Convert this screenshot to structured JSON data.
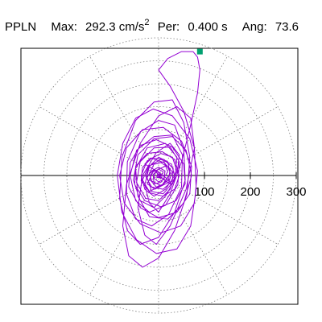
{
  "header": {
    "station": "PPLN",
    "max_label": "Max:",
    "max_value": "292.3 cm/s",
    "max_exp": "2",
    "per_label": "Per:",
    "per_value": "0.400 s",
    "ang_label": "Ang:",
    "ang_value": "73.6"
  },
  "chart_data": {
    "type": "polar particle-motion (line)",
    "title": "PPLN  Max: 292.3 cm/s2  Per: 0.400 s  Ang: 73.6",
    "radial_ticks": [
      100,
      200,
      300
    ],
    "radial_max": 300,
    "angular_gridlines_deg": [
      0,
      30,
      60,
      90,
      120,
      150,
      180,
      210,
      240,
      270,
      300,
      330
    ],
    "grid": "dotted",
    "max_amplitude_cm_s2": 292.3,
    "period_s": 0.4,
    "angle_deg": 73.6,
    "colors": {
      "trace": "#9400d3",
      "max_marker": "#00a070",
      "grid": "#808080",
      "frame": "#000000"
    },
    "trace_points": [
      [
        0,
        0
      ],
      [
        15,
        -12
      ],
      [
        28,
        -20
      ],
      [
        20,
        -8
      ],
      [
        -5,
        10
      ],
      [
        -30,
        25
      ],
      [
        -18,
        38
      ],
      [
        12,
        28
      ],
      [
        30,
        8
      ],
      [
        22,
        -15
      ],
      [
        -8,
        -30
      ],
      [
        -25,
        -18
      ],
      [
        -12,
        8
      ],
      [
        18,
        22
      ],
      [
        26,
        5
      ],
      [
        8,
        -20
      ],
      [
        -20,
        -35
      ],
      [
        -35,
        -10
      ],
      [
        -22,
        20
      ],
      [
        5,
        35
      ],
      [
        28,
        25
      ],
      [
        35,
        0
      ],
      [
        15,
        -30
      ],
      [
        -10,
        -45
      ],
      [
        -30,
        -30
      ],
      [
        -38,
        0
      ],
      [
        -25,
        32
      ],
      [
        5,
        48
      ],
      [
        30,
        40
      ],
      [
        40,
        10
      ],
      [
        25,
        -30
      ],
      [
        0,
        -55
      ],
      [
        -28,
        -50
      ],
      [
        -48,
        -15
      ],
      [
        -40,
        30
      ],
      [
        -10,
        60
      ],
      [
        25,
        62
      ],
      [
        45,
        30
      ],
      [
        42,
        -20
      ],
      [
        15,
        -65
      ],
      [
        -20,
        -80
      ],
      [
        -50,
        -55
      ],
      [
        -62,
        0
      ],
      [
        -48,
        55
      ],
      [
        -10,
        85
      ],
      [
        30,
        88
      ],
      [
        52,
        45
      ],
      [
        50,
        -25
      ],
      [
        22,
        -85
      ],
      [
        -15,
        -110
      ],
      [
        -50,
        -95
      ],
      [
        -70,
        -40
      ],
      [
        -68,
        30
      ],
      [
        -40,
        95
      ],
      [
        0,
        120
      ],
      [
        35,
        110
      ],
      [
        55,
        55
      ],
      [
        58,
        -10
      ],
      [
        35,
        -80
      ],
      [
        0,
        -135
      ],
      [
        -40,
        -150
      ],
      [
        -68,
        -120
      ],
      [
        -85,
        -50
      ],
      [
        -80,
        40
      ],
      [
        -50,
        120
      ],
      [
        -10,
        160
      ],
      [
        30,
        165
      ],
      [
        55,
        115
      ],
      [
        68,
        40
      ],
      [
        62,
        -40
      ],
      [
        35,
        -120
      ],
      [
        0,
        -180
      ],
      [
        -35,
        -200
      ],
      [
        -65,
        -175
      ],
      [
        -78,
        -110
      ],
      [
        -70,
        -20
      ],
      [
        -40,
        70
      ],
      [
        0,
        130
      ],
      [
        40,
        150
      ],
      [
        70,
        125
      ],
      [
        78,
        60
      ],
      [
        60,
        -30
      ],
      [
        25,
        -110
      ],
      [
        -5,
        -150
      ],
      [
        -30,
        -130
      ],
      [
        -45,
        -70
      ],
      [
        -35,
        0
      ],
      [
        -5,
        50
      ],
      [
        25,
        70
      ],
      [
        45,
        45
      ],
      [
        40,
        0
      ],
      [
        15,
        -45
      ],
      [
        -10,
        -70
      ],
      [
        -40,
        -55
      ],
      [
        -55,
        -10
      ],
      [
        -45,
        45
      ],
      [
        -10,
        80
      ],
      [
        30,
        85
      ],
      [
        60,
        55
      ],
      [
        72,
        0
      ],
      [
        55,
        -60
      ],
      [
        20,
        -95
      ],
      [
        -20,
        -90
      ],
      [
        -45,
        -45
      ],
      [
        -50,
        15
      ],
      [
        -25,
        60
      ],
      [
        15,
        70
      ],
      [
        40,
        40
      ],
      [
        35,
        -10
      ],
      [
        10,
        -40
      ],
      [
        -15,
        -35
      ],
      [
        -25,
        -5
      ],
      [
        -10,
        25
      ],
      [
        12,
        30
      ],
      [
        20,
        8
      ],
      [
        5,
        -15
      ],
      [
        -10,
        -18
      ],
      [
        -12,
        2
      ],
      [
        0,
        14
      ],
      [
        10,
        8
      ],
      [
        6,
        -6
      ],
      [
        -4,
        -4
      ],
      [
        -2,
        4
      ],
      [
        4,
        2
      ],
      [
        0,
        0
      ],
      [
        -8,
        12
      ],
      [
        -20,
        5
      ],
      [
        -15,
        -12
      ],
      [
        5,
        -22
      ],
      [
        22,
        -10
      ],
      [
        25,
        15
      ],
      [
        5,
        28
      ],
      [
        -20,
        22
      ],
      [
        -28,
        -2
      ],
      [
        -15,
        -25
      ],
      [
        10,
        -30
      ],
      [
        30,
        -12
      ],
      [
        32,
        15
      ],
      [
        12,
        35
      ],
      [
        -15,
        38
      ],
      [
        -35,
        18
      ],
      [
        -38,
        -12
      ],
      [
        -18,
        -38
      ],
      [
        10,
        -45
      ],
      [
        35,
        -30
      ],
      [
        45,
        0
      ],
      [
        35,
        35
      ],
      [
        8,
        52
      ],
      [
        -25,
        48
      ],
      [
        -50,
        20
      ],
      [
        -52,
        -20
      ],
      [
        -30,
        -55
      ],
      [
        5,
        -68
      ],
      [
        38,
        -55
      ],
      [
        58,
        -18
      ],
      [
        55,
        25
      ],
      [
        30,
        62
      ],
      [
        -5,
        78
      ],
      [
        -40,
        65
      ],
      [
        -62,
        28
      ],
      [
        -65,
        -25
      ],
      [
        -40,
        -70
      ],
      [
        0,
        -92
      ],
      [
        40,
        -80
      ],
      [
        68,
        -40
      ],
      [
        72,
        20
      ],
      [
        50,
        75
      ],
      [
        10,
        105
      ],
      [
        -35,
        100
      ],
      [
        -70,
        60
      ],
      [
        -85,
        0
      ],
      [
        -75,
        -60
      ],
      [
        -40,
        -105
      ],
      [
        5,
        -125
      ],
      [
        48,
        -110
      ],
      [
        78,
        -60
      ],
      [
        85,
        10
      ],
      [
        68,
        80
      ],
      [
        30,
        130
      ],
      [
        -12,
        145
      ],
      [
        -50,
        125
      ],
      [
        -78,
        70
      ],
      [
        -90,
        0
      ],
      [
        -80,
        -80
      ],
      [
        -48,
        -140
      ],
      [
        -5,
        -170
      ],
      [
        40,
        -160
      ],
      [
        70,
        -110
      ],
      [
        82,
        -30
      ],
      [
        78,
        60
      ],
      [
        55,
        140
      ],
      [
        25,
        195
      ],
      [
        0,
        230
      ],
      [
        20,
        255
      ],
      [
        50,
        270
      ],
      [
        75,
        270
      ],
      [
        85,
        258
      ],
      [
        90,
        230
      ],
      [
        85,
        180
      ],
      [
        70,
        110
      ],
      [
        50,
        30
      ],
      [
        25,
        -40
      ],
      [
        0,
        -80
      ],
      [
        -20,
        -60
      ],
      [
        -30,
        -20
      ],
      [
        -20,
        20
      ],
      [
        0,
        40
      ],
      [
        20,
        30
      ],
      [
        25,
        5
      ],
      [
        12,
        -18
      ],
      [
        -5,
        -25
      ],
      [
        -18,
        -10
      ],
      [
        -15,
        10
      ],
      [
        0,
        18
      ],
      [
        14,
        10
      ],
      [
        12,
        -8
      ],
      [
        0,
        -14
      ],
      [
        -10,
        -6
      ],
      [
        -8,
        6
      ],
      [
        0,
        8
      ],
      [
        6,
        2
      ],
      [
        3,
        -4
      ],
      [
        -2,
        -2
      ],
      [
        0,
        0
      ]
    ],
    "max_marker_point": [
      90,
      270
    ]
  }
}
